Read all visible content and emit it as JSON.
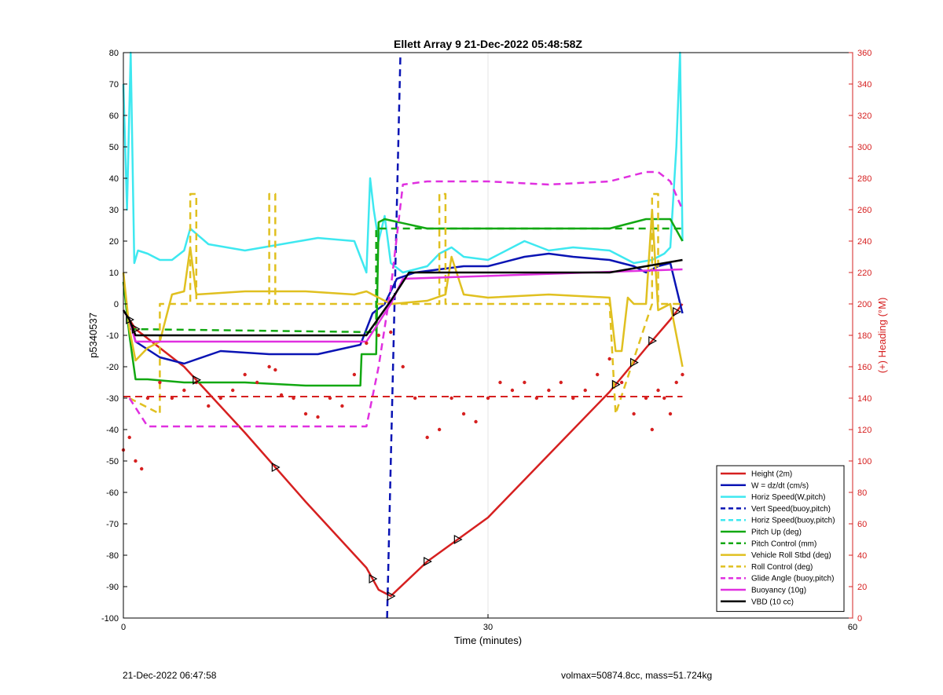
{
  "footer": {
    "left": "21-Dec-2022 06:47:58",
    "right": "volmax=50874.8cc, mass=51.724kg"
  },
  "chart_data": {
    "type": "line",
    "title": "Ellett Array 9 21-Dec-2022 05:48:58Z",
    "xlabel": "Time (minutes)",
    "ylabel": "p5340537",
    "ylabel_right": "(+) Heading (°M)",
    "xlim": [
      0,
      60
    ],
    "ylim": [
      -100,
      80
    ],
    "ylim_right": [
      0,
      360
    ],
    "xticks": [
      0,
      30,
      60
    ],
    "yticks": [
      -100,
      -90,
      -80,
      -70,
      -60,
      -50,
      -40,
      -30,
      -20,
      -10,
      0,
      10,
      20,
      30,
      40,
      50,
      60,
      70,
      80
    ],
    "yticks_right": [
      0,
      20,
      40,
      60,
      80,
      100,
      120,
      140,
      160,
      180,
      200,
      220,
      240,
      260,
      280,
      300,
      320,
      340,
      360
    ],
    "grid": "x-only",
    "legend_position": "bottom-right",
    "colors": {
      "red": "#d62020",
      "blue": "#0a14b4",
      "cyan": "#3ee8f0",
      "green": "#12a812",
      "yellow": "#e0c020",
      "magenta": "#e030e0",
      "black": "#000000",
      "right_axis": "#d62020"
    },
    "series": [
      {
        "name": "Height (2m)",
        "color": "#d62020",
        "style": "solid",
        "x": [
          0,
          1,
          5,
          10,
          15,
          20,
          21,
          22,
          25,
          30,
          35,
          40,
          43,
          45,
          46
        ],
        "y": [
          -2,
          -8,
          -20,
          -41,
          -63,
          -84,
          -91,
          -93,
          -82,
          -68,
          -48,
          -28,
          -14,
          -5,
          0
        ]
      },
      {
        "name": "W = dz/dt (cm/s)",
        "color": "#0a14b4",
        "style": "solid",
        "x": [
          0,
          0.5,
          1,
          3,
          5,
          8,
          12,
          16,
          19.5,
          20.5,
          21.5,
          22.5,
          24,
          26,
          28,
          30,
          33,
          35,
          37,
          40,
          42,
          43,
          44,
          45,
          46
        ],
        "y": [
          -2,
          -5,
          -12,
          -17,
          -19,
          -15,
          -16,
          -16,
          -13,
          -3,
          0,
          8,
          10,
          11,
          12,
          12,
          15,
          16,
          15,
          14,
          12,
          10,
          12,
          13,
          -3
        ]
      },
      {
        "name": "Horiz Speed(W,pitch)",
        "color": "#3ee8f0",
        "style": "solid",
        "x": [
          0,
          0.3,
          0.6,
          0.9,
          1.2,
          2,
          3,
          4,
          5,
          5.5,
          7,
          10,
          13,
          16,
          19,
          20,
          20.3,
          20.6,
          21,
          21.5,
          22,
          23,
          25,
          26,
          27,
          28,
          30,
          33,
          35,
          37,
          40,
          42,
          43.5,
          44.5,
          45,
          45.5,
          45.8,
          46
        ],
        "y": [
          70,
          30,
          80,
          13,
          17,
          16,
          14,
          14,
          17,
          24,
          19,
          17,
          19,
          21,
          20,
          10,
          40,
          30,
          20,
          28,
          13,
          10,
          12,
          16,
          18,
          15,
          14,
          20,
          17,
          18,
          17,
          13,
          14,
          16,
          18,
          50,
          80,
          20
        ]
      },
      {
        "name": "Vert Speed(buoy,pitch)",
        "color": "#0a14b4",
        "style": "dashed",
        "x": [
          21.7,
          22.8
        ],
        "y": [
          -100,
          80
        ]
      },
      {
        "name": "Horiz Speed(buoy,pitch)",
        "color": "#3ee8f0",
        "style": "dashed",
        "x": [],
        "y": []
      },
      {
        "name": "Pitch Up (deg)",
        "color": "#12a812",
        "style": "solid",
        "x": [
          0,
          0.5,
          1,
          2,
          5,
          10,
          15,
          19.5,
          19.6,
          20.8,
          21,
          21.5,
          25,
          30,
          35,
          40,
          42,
          43,
          45,
          46
        ],
        "y": [
          7,
          -10,
          -24,
          -24,
          -25,
          -25,
          -26,
          -26,
          -16,
          -16,
          26,
          27,
          24,
          24,
          24,
          24,
          26,
          27,
          27,
          20
        ]
      },
      {
        "name": "Pitch Control (mm)",
        "color": "#12a812",
        "style": "dashed",
        "x": [
          0.5,
          20.8,
          20.8,
          46
        ],
        "y": [
          -8,
          -9,
          24,
          24
        ]
      },
      {
        "name": "Vehicle Roll Stbd (deg)",
        "color": "#e0c020",
        "style": "solid",
        "x": [
          0,
          0.5,
          1,
          2,
          3,
          4,
          5,
          5.5,
          6,
          10,
          12,
          15,
          19,
          20,
          21,
          22,
          25,
          26.5,
          27,
          28,
          30,
          35,
          40,
          40.5,
          41,
          41.5,
          42,
          43,
          43.5,
          44,
          45,
          46
        ],
        "y": [
          10,
          -8,
          -18,
          -14,
          -12,
          3,
          4,
          18,
          3,
          4,
          4,
          4,
          3,
          4,
          2,
          0,
          1,
          3,
          15,
          3,
          2,
          3,
          2,
          -15,
          -15,
          2,
          0,
          0,
          30,
          -2,
          0,
          -20
        ]
      },
      {
        "name": "Roll Control (deg)",
        "color": "#e0c020",
        "style": "dashed",
        "x": [
          0.5,
          3,
          3,
          5.5,
          5.5,
          6,
          6,
          12,
          12,
          12.5,
          12.5,
          26,
          26,
          26.5,
          26.5,
          40,
          40.5,
          43.5,
          43.5,
          44,
          44,
          46
        ],
        "y": [
          -30,
          -35,
          0,
          0,
          35,
          35,
          0,
          0,
          35,
          35,
          0,
          0,
          35,
          35,
          0,
          0,
          -35,
          0,
          35,
          35,
          0,
          0
        ]
      },
      {
        "name": "Glide Angle (buoy,pitch)",
        "color": "#e030e0",
        "style": "dashed",
        "x": [
          0.5,
          2,
          5,
          10,
          15,
          20,
          21,
          22,
          23,
          25,
          30,
          35,
          40,
          42,
          43,
          44,
          45,
          46
        ],
        "y": [
          -30,
          -39,
          -39,
          -39,
          -39,
          -39,
          -20,
          5,
          38,
          39,
          39,
          38,
          39,
          41,
          42,
          42,
          39,
          30
        ]
      },
      {
        "name": "Buoyancy (10g)",
        "color": "#e030e0",
        "style": "solid",
        "x": [
          0,
          0.5,
          1,
          20,
          22,
          23,
          46
        ],
        "y": [
          -2,
          -5,
          -12,
          -12,
          0,
          8,
          11
        ]
      },
      {
        "name": "VBD (10 cc)",
        "color": "#000000",
        "style": "solid",
        "x": [
          0,
          0.5,
          1,
          20,
          22,
          23.5,
          40,
          46
        ],
        "y": [
          -2,
          -5,
          -10,
          -10,
          1,
          10,
          10,
          14
        ]
      },
      {
        "name": "",
        "color": "#d62020",
        "style": "dashed-heading-ref",
        "axis": "right",
        "x": [
          0,
          46
        ],
        "y": [
          141,
          141
        ]
      },
      {
        "name": "",
        "color": "#d62020",
        "style": "dots-heading",
        "axis": "right",
        "x": [
          0,
          0.5,
          1,
          1.5,
          2,
          3,
          4,
          5,
          6,
          7,
          8,
          9,
          10,
          11,
          12,
          12.5,
          13,
          14,
          15,
          16,
          17,
          18,
          19,
          20,
          21,
          22,
          23,
          24,
          25,
          26,
          27,
          28,
          29,
          30,
          31,
          32,
          33,
          34,
          35,
          36,
          37,
          38,
          39,
          40,
          41,
          42,
          43,
          43.5,
          44,
          44.5,
          45,
          45.5,
          46
        ],
        "y": [
          107,
          115,
          100,
          95,
          140,
          150,
          140,
          145,
          150,
          135,
          140,
          145,
          155,
          150,
          160,
          158,
          142,
          140,
          130,
          128,
          140,
          135,
          155,
          175,
          180,
          182,
          160,
          140,
          115,
          120,
          140,
          130,
          125,
          140,
          150,
          145,
          150,
          140,
          145,
          150,
          140,
          145,
          155,
          165,
          150,
          130,
          140,
          120,
          145,
          140,
          130,
          150,
          155
        ]
      }
    ]
  }
}
